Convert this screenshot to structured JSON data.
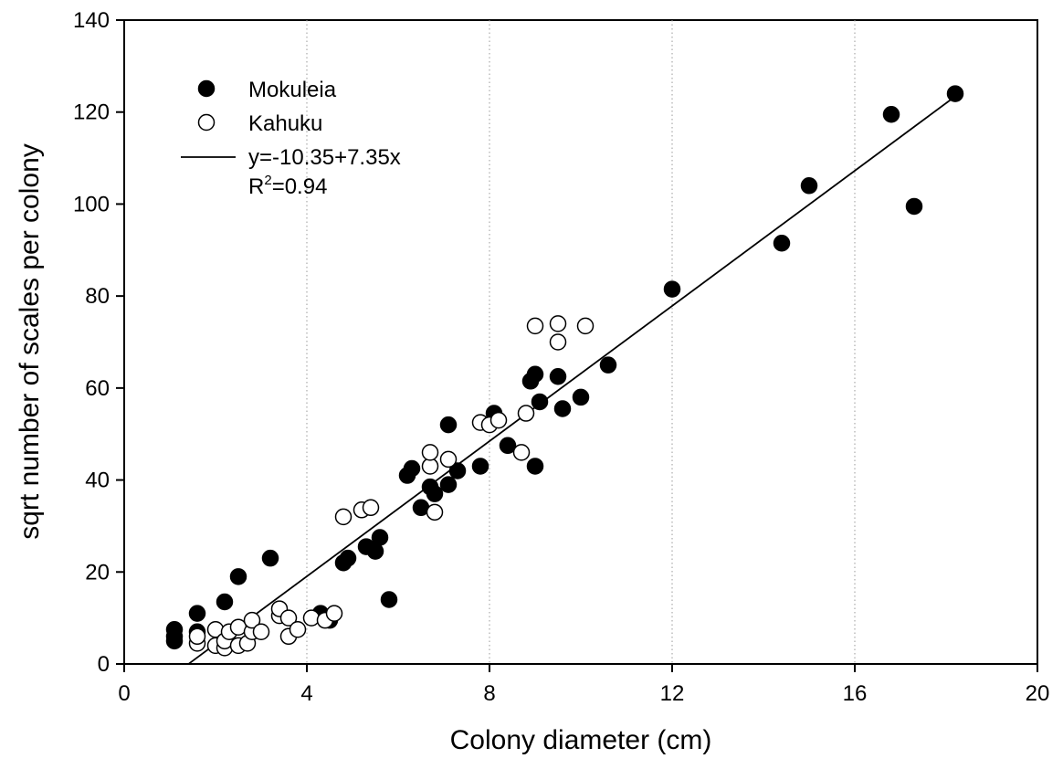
{
  "chart_data": {
    "type": "scatter",
    "title": "",
    "xlabel": "Colony diameter (cm)",
    "ylabel": "sqrt number of scales per colony",
    "xlim": [
      0,
      20
    ],
    "ylim": [
      0,
      140
    ],
    "xticks": [
      "0",
      "4",
      "8",
      "12",
      "16",
      "20"
    ],
    "yticks": [
      "0",
      "20",
      "40",
      "60",
      "80",
      "100",
      "120",
      "140"
    ],
    "xtick_values": [
      0,
      4,
      8,
      12,
      16,
      20
    ],
    "ytick_values": [
      0,
      20,
      40,
      60,
      80,
      100,
      120,
      140
    ],
    "grid": "vertical dotted lines at x ticks",
    "legend_position": "top-left",
    "series": [
      {
        "name": "Mokuleia",
        "marker": "filled-circle",
        "color": "#000000",
        "points": [
          [
            1.1,
            5
          ],
          [
            1.1,
            6
          ],
          [
            1.1,
            7.5
          ],
          [
            1.6,
            11
          ],
          [
            1.6,
            7
          ],
          [
            2.2,
            13.5
          ],
          [
            2.5,
            19
          ],
          [
            3.2,
            23
          ],
          [
            4.3,
            11
          ],
          [
            4.5,
            9.5
          ],
          [
            4.8,
            22
          ],
          [
            4.9,
            23
          ],
          [
            5.3,
            25.5
          ],
          [
            5.5,
            24.5
          ],
          [
            5.6,
            27.5
          ],
          [
            5.8,
            14
          ],
          [
            6.2,
            41
          ],
          [
            6.3,
            42.5
          ],
          [
            6.5,
            34
          ],
          [
            6.7,
            38.5
          ],
          [
            6.8,
            37
          ],
          [
            7.1,
            39
          ],
          [
            7.1,
            52
          ],
          [
            7.3,
            42
          ],
          [
            7.8,
            43
          ],
          [
            8.1,
            54.5
          ],
          [
            8.4,
            47.5
          ],
          [
            8.9,
            61.5
          ],
          [
            9.0,
            63
          ],
          [
            9.0,
            43
          ],
          [
            9.1,
            57
          ],
          [
            9.5,
            62.5
          ],
          [
            9.6,
            55.5
          ],
          [
            10.0,
            58
          ],
          [
            10.6,
            65
          ],
          [
            12.0,
            81.5
          ],
          [
            14.4,
            91.5
          ],
          [
            15.0,
            104
          ],
          [
            16.8,
            119.5
          ],
          [
            17.3,
            99.5
          ],
          [
            18.2,
            124
          ]
        ]
      },
      {
        "name": "Kahuku",
        "marker": "open-circle",
        "color": "#000000",
        "points": [
          [
            1.6,
            4.5
          ],
          [
            1.6,
            6
          ],
          [
            2.0,
            4
          ],
          [
            2.0,
            7.5
          ],
          [
            2.2,
            3.5
          ],
          [
            2.2,
            5
          ],
          [
            2.3,
            7
          ],
          [
            2.5,
            4
          ],
          [
            2.5,
            8
          ],
          [
            2.7,
            4.5
          ],
          [
            2.8,
            7
          ],
          [
            2.8,
            9.5
          ],
          [
            3.0,
            7
          ],
          [
            3.4,
            10.5
          ],
          [
            3.4,
            12
          ],
          [
            3.6,
            6
          ],
          [
            3.6,
            10
          ],
          [
            3.8,
            7.5
          ],
          [
            4.1,
            10
          ],
          [
            4.4,
            9.5
          ],
          [
            4.6,
            11
          ],
          [
            4.8,
            32
          ],
          [
            5.2,
            33.5
          ],
          [
            5.4,
            34
          ],
          [
            6.7,
            43
          ],
          [
            6.7,
            46
          ],
          [
            6.8,
            33
          ],
          [
            7.1,
            44.5
          ],
          [
            7.8,
            52.5
          ],
          [
            8.0,
            52
          ],
          [
            8.2,
            53
          ],
          [
            8.7,
            46
          ],
          [
            8.8,
            54.5
          ],
          [
            9.0,
            73.5
          ],
          [
            9.5,
            74
          ],
          [
            9.5,
            70
          ],
          [
            10.1,
            73.5
          ]
        ]
      }
    ],
    "regression": {
      "label": "y=-10.35+7.35x",
      "intercept": -10.35,
      "slope": 7.35,
      "x_range": [
        1.41,
        18.2
      ],
      "r2_base": "R",
      "r2_sup": "2",
      "r2_value": "=0.94"
    }
  }
}
